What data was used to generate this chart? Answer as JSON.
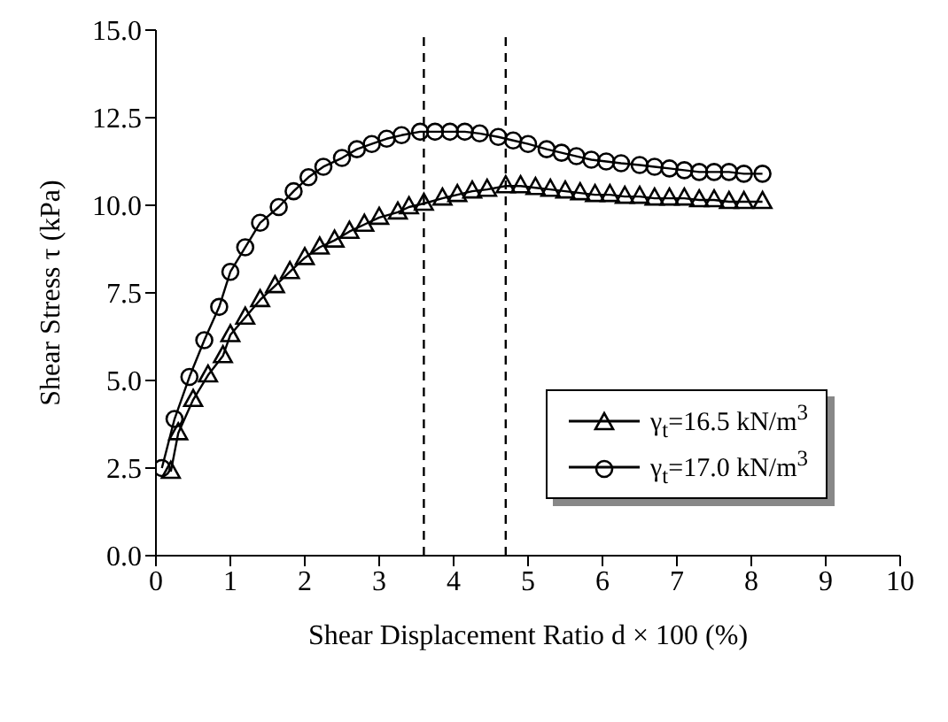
{
  "chart_data": {
    "type": "line",
    "xlabel": "Shear Displacement Ratio d × 100 (%)",
    "ylabel": "Shear Stress τ (kPa)",
    "xlim": [
      0,
      10
    ],
    "xticks": [
      0,
      1,
      2,
      3,
      4,
      5,
      6,
      7,
      8,
      9,
      10
    ],
    "ylim": [
      0,
      15
    ],
    "yticks": [
      {
        "value": 0,
        "label": "0.0"
      },
      {
        "value": 2.5,
        "label": "2.5"
      },
      {
        "value": 5,
        "label": "5.0"
      },
      {
        "value": 7.5,
        "label": "7.5"
      },
      {
        "value": 10,
        "label": "10.0"
      },
      {
        "value": 12.5,
        "label": "12.5"
      },
      {
        "value": 15,
        "label": "15.0"
      }
    ],
    "grid": false,
    "legend": "bottom right",
    "line_style": "solid",
    "ref_lines": [
      {
        "axis": "x",
        "value": 3.6,
        "line_style": "dashed",
        "color": "#000000"
      },
      {
        "axis": "x",
        "value": 4.7,
        "line_style": "dashed",
        "color": "#000000"
      }
    ],
    "series": [
      {
        "name": "γ$_{t}$=16.5 kN/m$^{3}$",
        "color": "#000000",
        "marker": "triangle",
        "x": [
          0.2,
          0.3,
          0.5,
          0.7,
          0.9,
          1.0,
          1.2,
          1.4,
          1.6,
          1.8,
          2.0,
          2.2,
          2.4,
          2.6,
          2.8,
          3.0,
          3.25,
          3.4,
          3.6,
          3.85,
          4.05,
          4.25,
          4.45,
          4.7,
          4.9,
          5.1,
          5.3,
          5.5,
          5.7,
          5.9,
          6.1,
          6.3,
          6.5,
          6.7,
          6.9,
          7.1,
          7.3,
          7.5,
          7.7,
          7.9,
          8.15
        ],
        "values": [
          2.4,
          3.5,
          4.45,
          5.15,
          5.7,
          6.3,
          6.8,
          7.3,
          7.7,
          8.1,
          8.5,
          8.8,
          9.0,
          9.25,
          9.45,
          9.65,
          9.8,
          9.95,
          10.05,
          10.2,
          10.3,
          10.4,
          10.45,
          10.55,
          10.55,
          10.5,
          10.45,
          10.4,
          10.35,
          10.3,
          10.3,
          10.25,
          10.25,
          10.2,
          10.2,
          10.2,
          10.15,
          10.15,
          10.1,
          10.1,
          10.1
        ]
      },
      {
        "name": "γ$_{t}$=17.0 kN/m$^{3}$",
        "color": "#000000",
        "marker": "circle",
        "x": [
          0.08,
          0.25,
          0.45,
          0.65,
          0.85,
          1.0,
          1.2,
          1.4,
          1.65,
          1.85,
          2.05,
          2.25,
          2.5,
          2.7,
          2.9,
          3.1,
          3.3,
          3.55,
          3.75,
          3.95,
          4.15,
          4.35,
          4.6,
          4.8,
          5.0,
          5.25,
          5.45,
          5.65,
          5.85,
          6.05,
          6.25,
          6.5,
          6.7,
          6.9,
          7.1,
          7.3,
          7.5,
          7.7,
          7.9,
          8.15
        ],
        "values": [
          2.5,
          3.9,
          5.1,
          6.15,
          7.1,
          8.1,
          8.8,
          9.5,
          9.95,
          10.4,
          10.8,
          11.1,
          11.35,
          11.6,
          11.75,
          11.9,
          12.0,
          12.1,
          12.1,
          12.1,
          12.1,
          12.05,
          11.95,
          11.85,
          11.75,
          11.6,
          11.5,
          11.4,
          11.3,
          11.25,
          11.2,
          11.15,
          11.1,
          11.05,
          11.0,
          10.95,
          10.95,
          10.95,
          10.9,
          10.9
        ]
      }
    ]
  }
}
